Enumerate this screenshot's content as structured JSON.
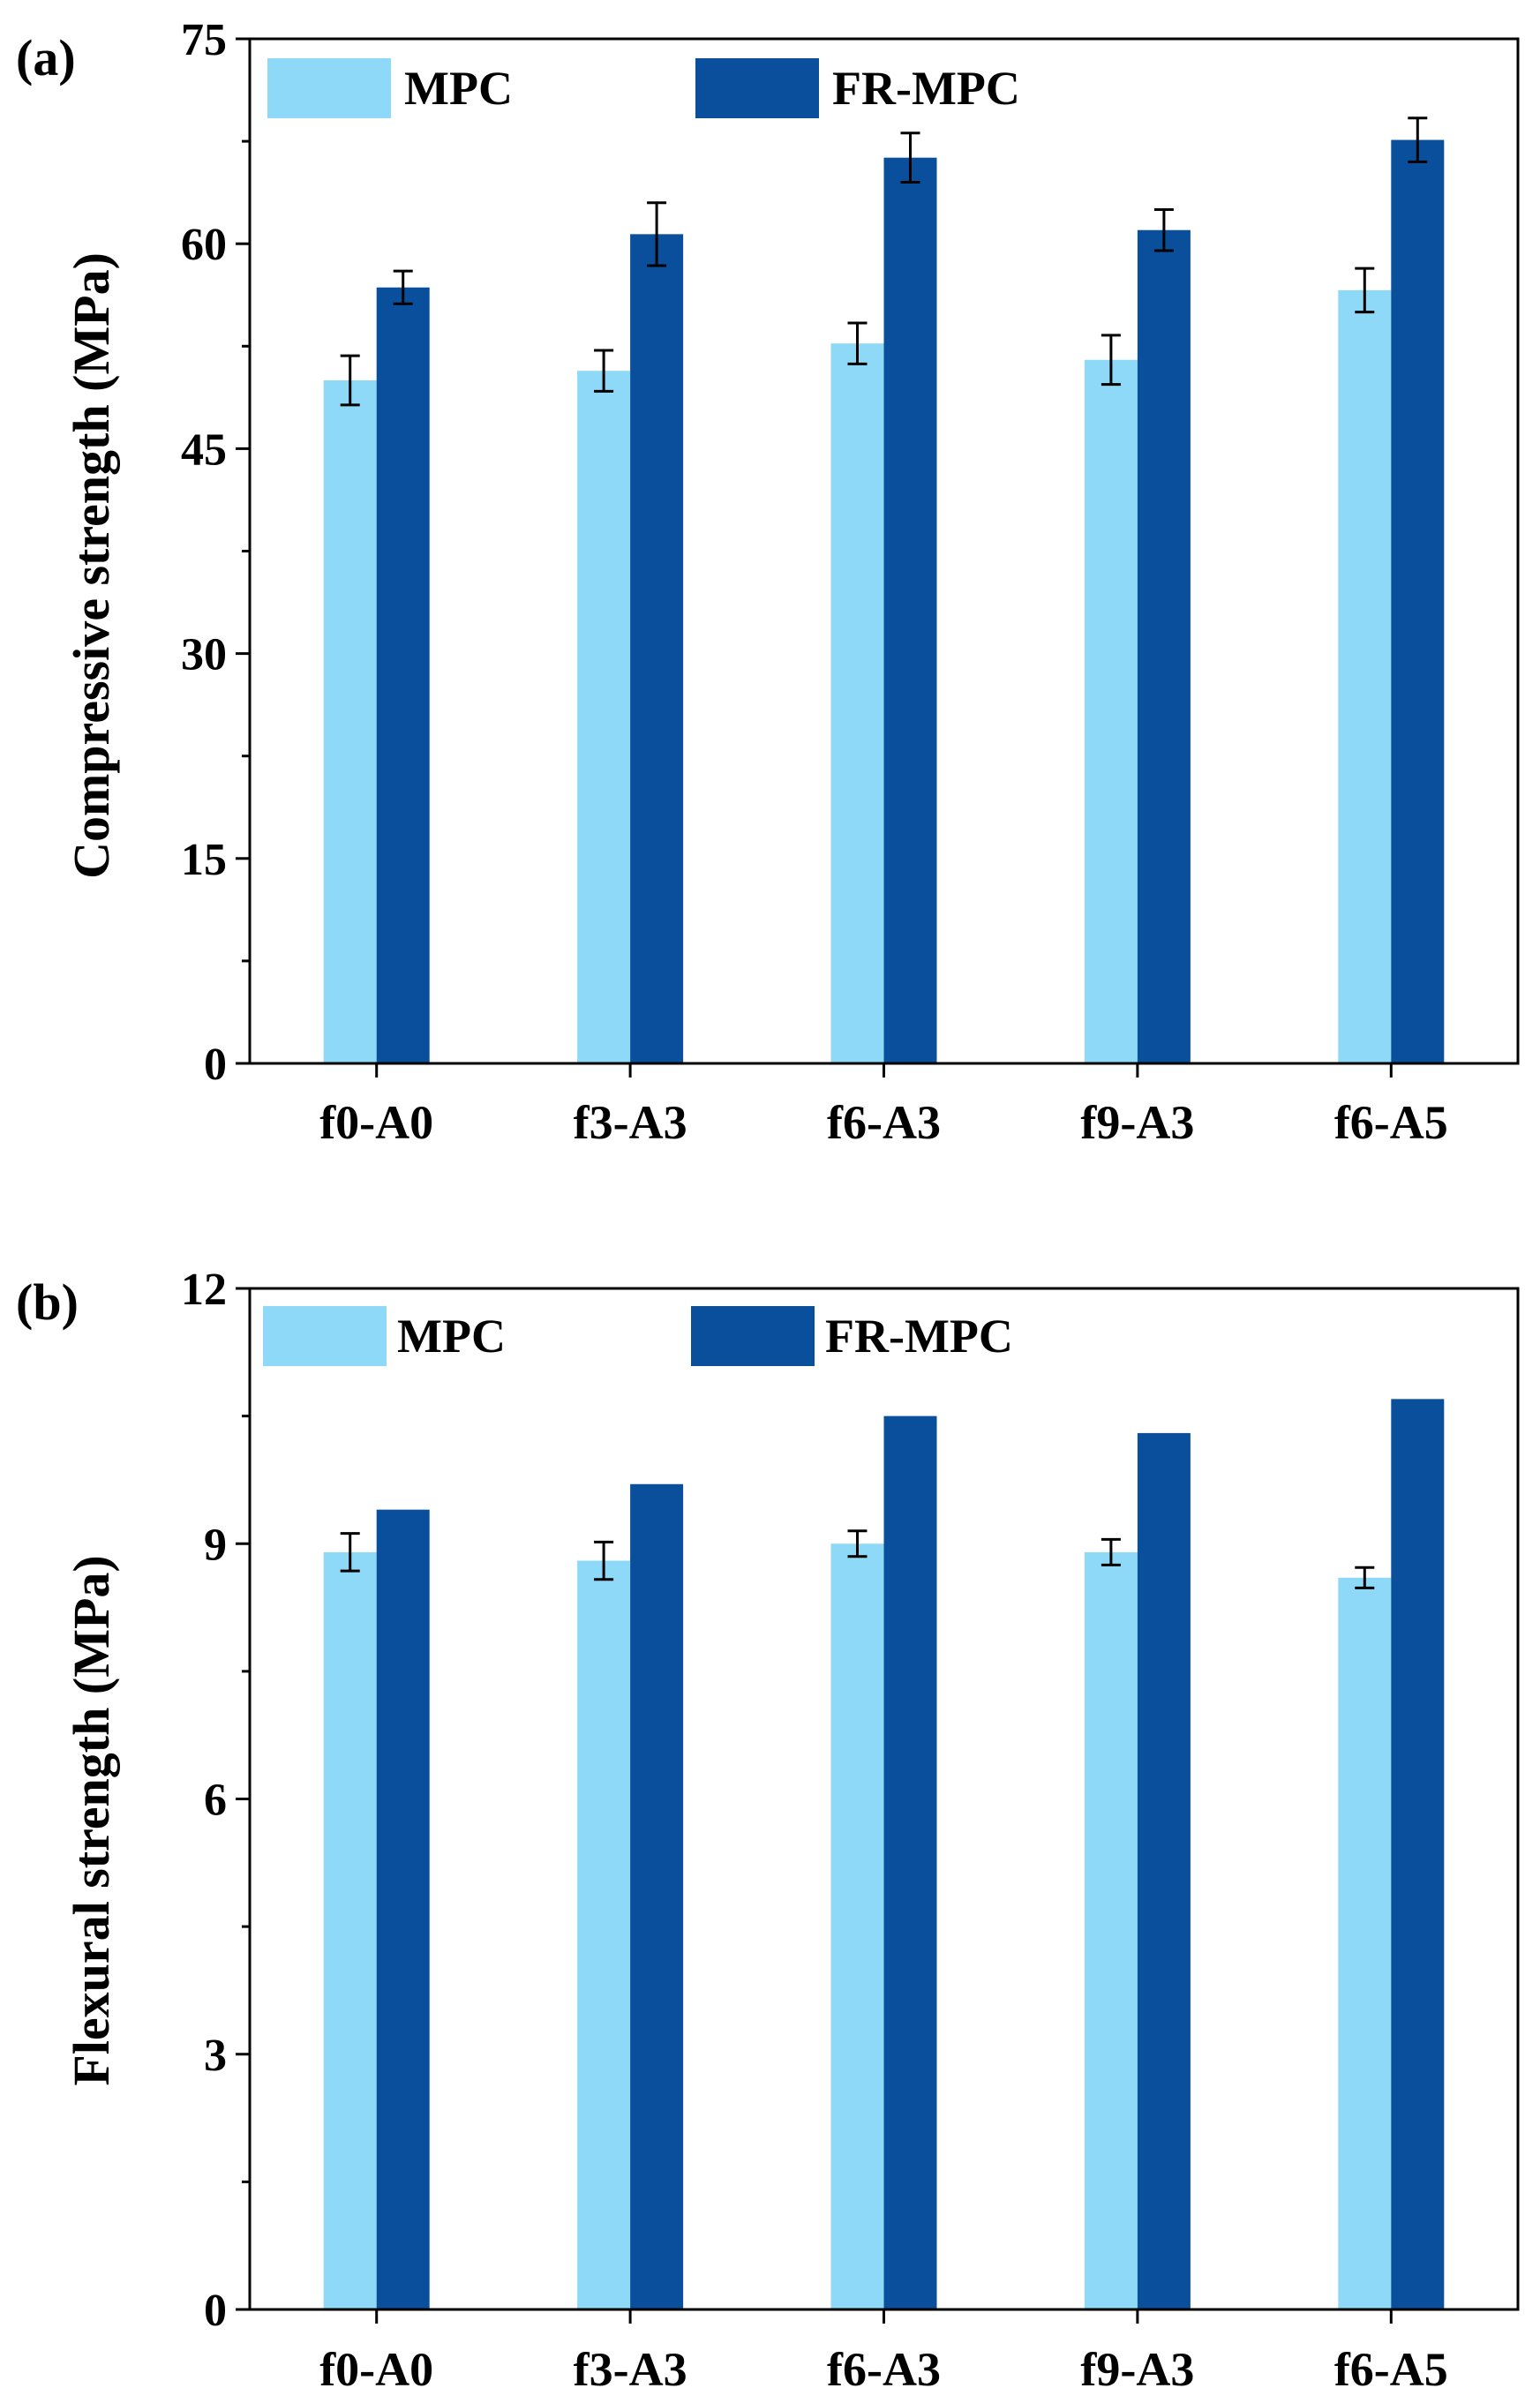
{
  "colors": {
    "mpc": "#8ed8f8",
    "fr_mpc": "#0a4f9c",
    "axis": "#000000",
    "error_bar": "#000000",
    "background": "#ffffff"
  },
  "chart_data": [
    {
      "panel_label": "(a)",
      "type": "bar",
      "title": "",
      "xlabel": "",
      "ylabel": "Compressive strength (MPa)",
      "ylim": [
        0,
        75
      ],
      "yticks": [
        0,
        15,
        30,
        45,
        60,
        75
      ],
      "grid": false,
      "legend_position": "top",
      "categories": [
        "f0-A0",
        "f3-A3",
        "f6-A3",
        "f9-A3",
        "f6-A5"
      ],
      "series": [
        {
          "name": "MPC",
          "color": "#8ed8f8",
          "values": [
            50.0,
            50.7,
            52.7,
            51.5,
            56.6
          ],
          "errors": [
            1.8,
            1.5,
            1.5,
            1.8,
            1.6
          ]
        },
        {
          "name": "FR-MPC",
          "color": "#0a4f9c",
          "values": [
            56.8,
            60.7,
            66.3,
            61.0,
            67.6
          ],
          "errors": [
            1.2,
            2.3,
            1.8,
            1.5,
            1.6
          ]
        }
      ]
    },
    {
      "panel_label": "(b)",
      "type": "bar",
      "title": "",
      "xlabel": "",
      "ylabel": "Flexural strength (MPa)",
      "ylim": [
        0,
        12
      ],
      "yticks": [
        0,
        3,
        6,
        9,
        12
      ],
      "grid": false,
      "legend_position": "top",
      "categories": [
        "f0-A0",
        "f3-A3",
        "f6-A3",
        "f9-A3",
        "f6-A5"
      ],
      "series": [
        {
          "name": "MPC",
          "color": "#8ed8f8",
          "values": [
            8.9,
            8.8,
            9.0,
            8.9,
            8.6
          ],
          "errors": [
            0.22,
            0.22,
            0.15,
            0.15,
            0.12
          ]
        },
        {
          "name": "FR-MPC",
          "color": "#0a4f9c",
          "values": [
            9.4,
            9.7,
            10.5,
            10.3,
            10.7
          ]
        }
      ]
    }
  ]
}
